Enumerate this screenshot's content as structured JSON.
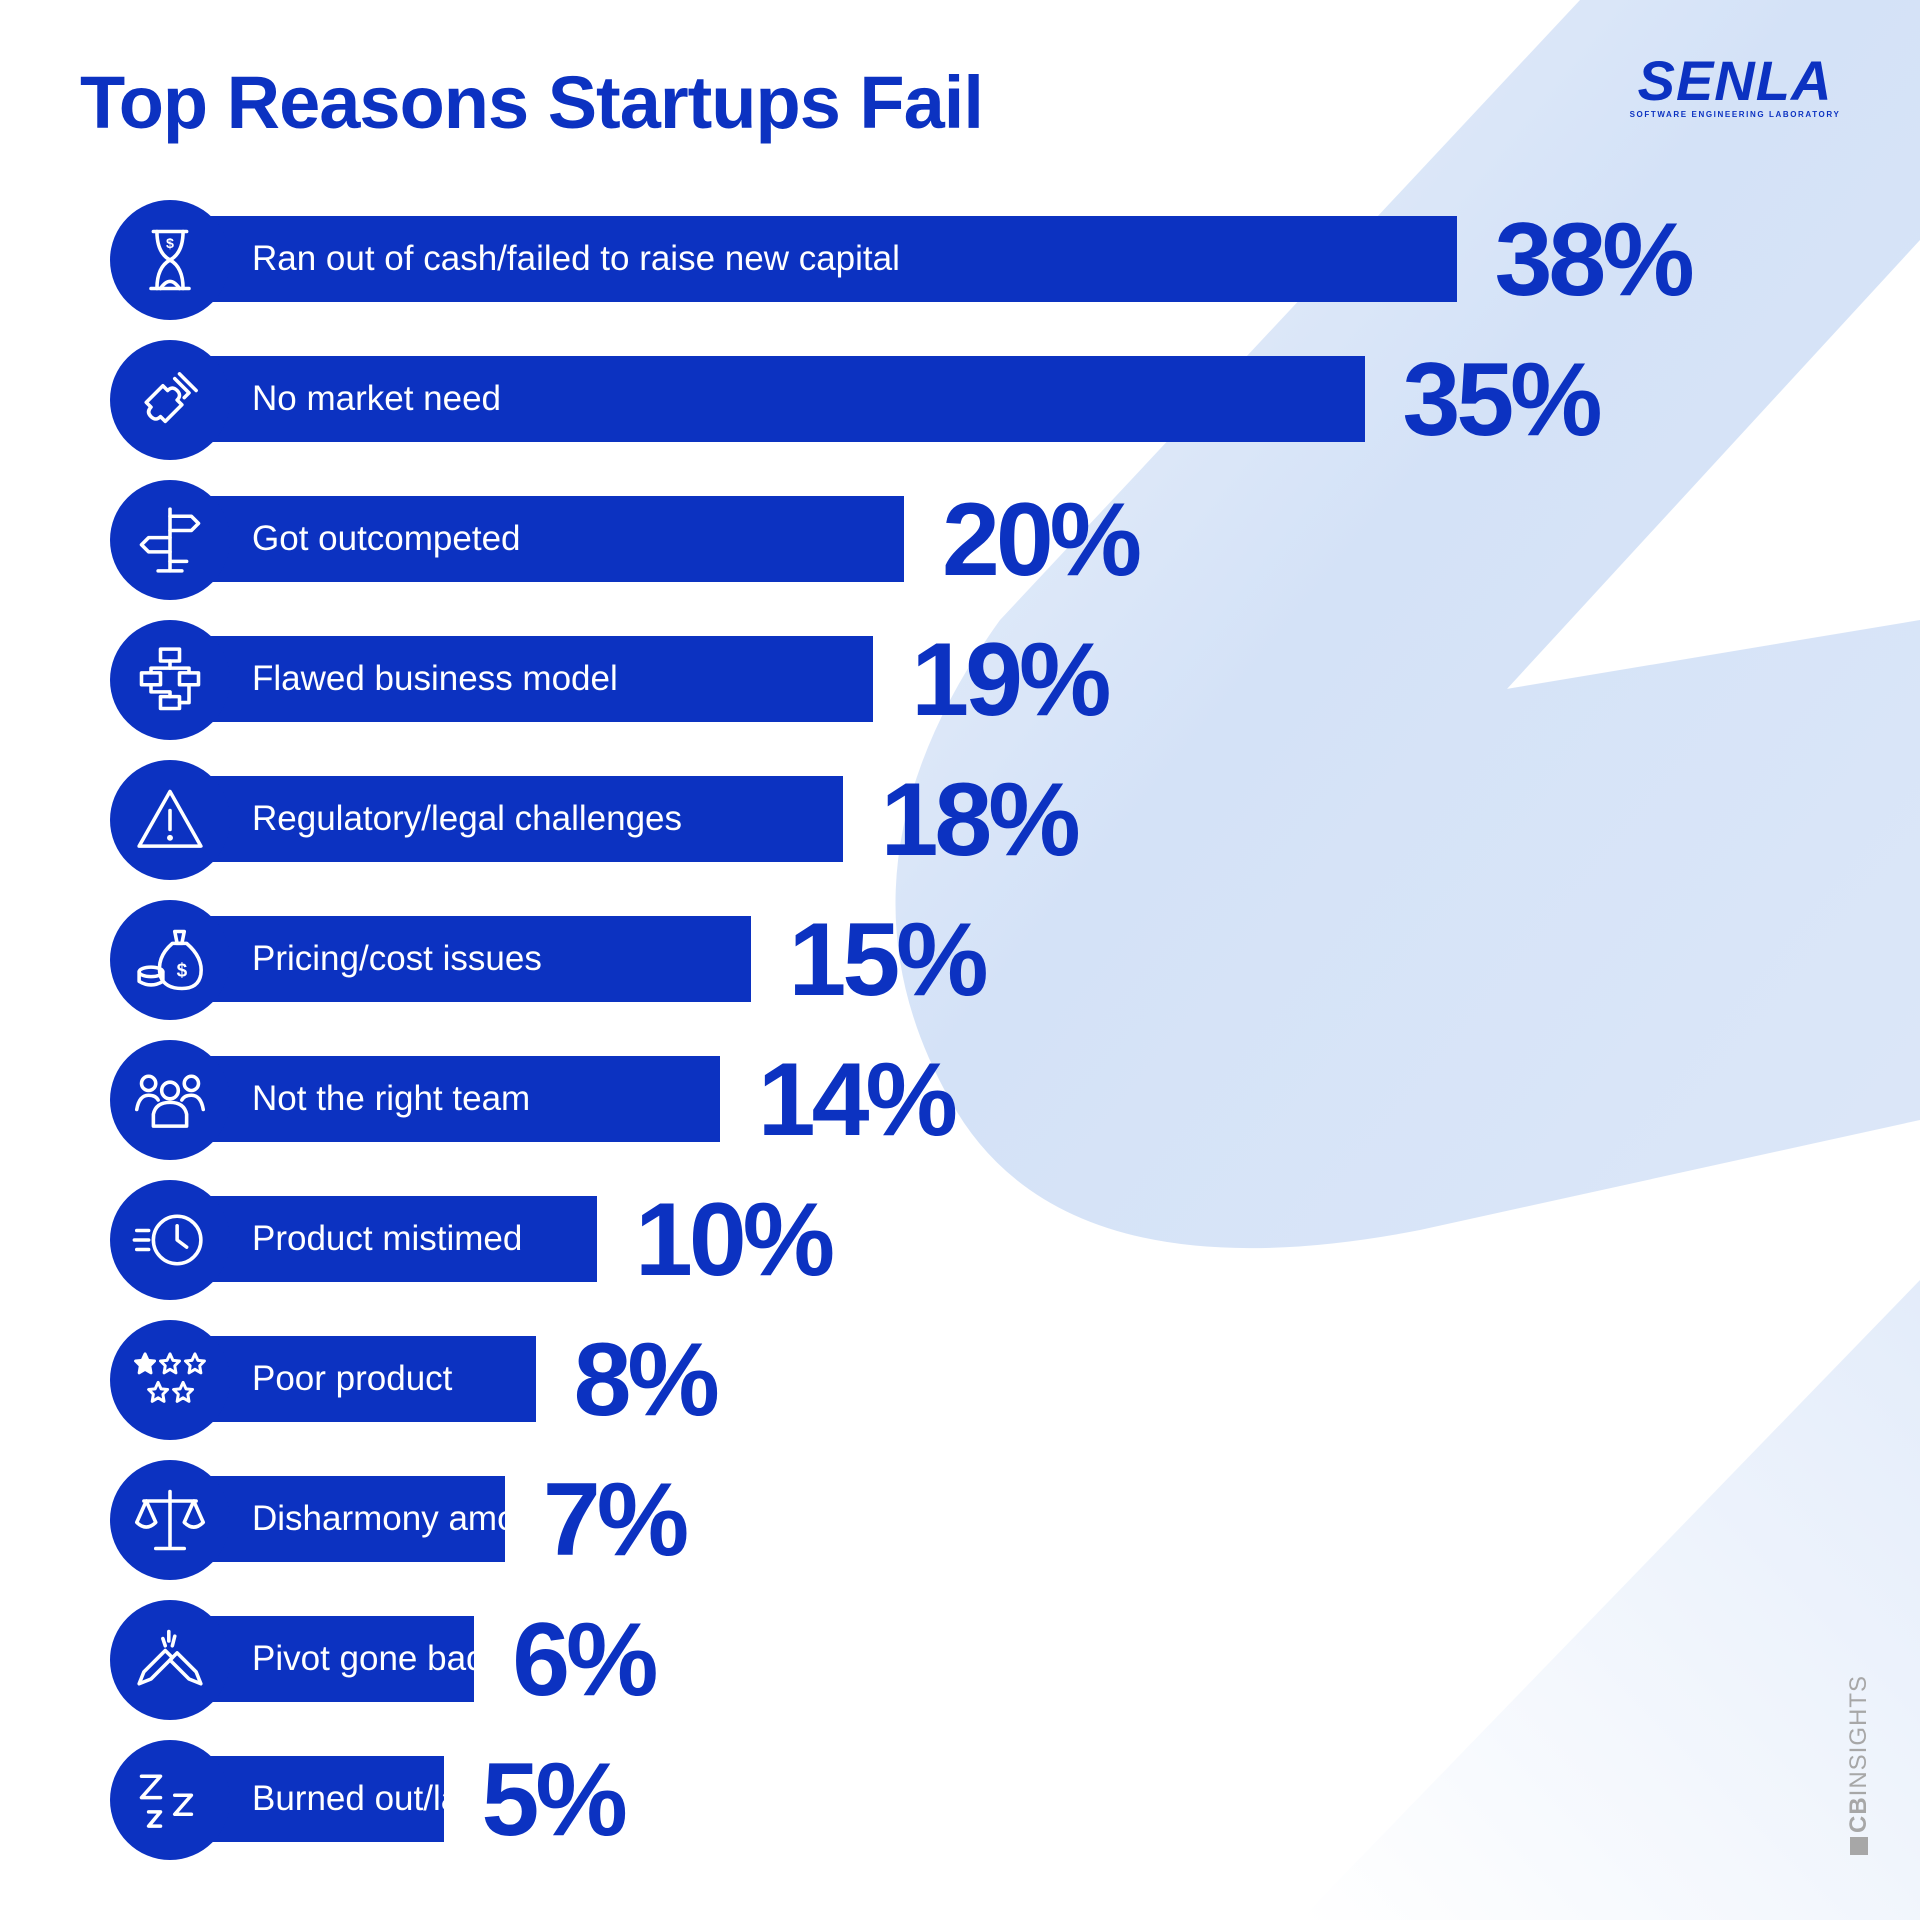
{
  "title": "Top Reasons Startups Fail",
  "brand": {
    "name": "SENLA",
    "tagline": "SOFTWARE ENGINEERING LABORATORY"
  },
  "source": {
    "bold": "CB",
    "rest": "INSIGHTS"
  },
  "colors": {
    "primary": "#0c32c1",
    "background_shape": "#dce7f8",
    "text_on_bar": "#ffffff"
  },
  "chart_data": {
    "type": "bar",
    "orientation": "horizontal",
    "value_suffix": "%",
    "xlim": [
      0,
      38
    ],
    "categories": [
      "Ran out of cash/failed to raise new capital",
      "No market need",
      "Got outcompeted",
      "Flawed business model",
      "Regulatory/legal challenges",
      "Pricing/cost issues",
      "Not the right team",
      "Product mistimed",
      "Poor product",
      "Disharmony among team/investors",
      "Pivot gone bad",
      "Burned out/lacked passion"
    ],
    "values": [
      38,
      35,
      20,
      19,
      18,
      15,
      14,
      10,
      8,
      7,
      6,
      5
    ],
    "labels": [
      "38%",
      "35%",
      "20%",
      "19%",
      "18%",
      "15%",
      "14%",
      "10%",
      "8%",
      "7%",
      "6%",
      "5%"
    ],
    "icons": [
      "hourglass-dollar-icon",
      "puzzle-pieces-icon",
      "signpost-icon",
      "flowchart-icon",
      "warning-triangle-icon",
      "money-bag-coins-icon",
      "team-people-icon",
      "fast-clock-icon",
      "rating-stars-icon",
      "balance-scale-icon",
      "broken-pencil-icon",
      "sleep-zzz-icon"
    ]
  }
}
